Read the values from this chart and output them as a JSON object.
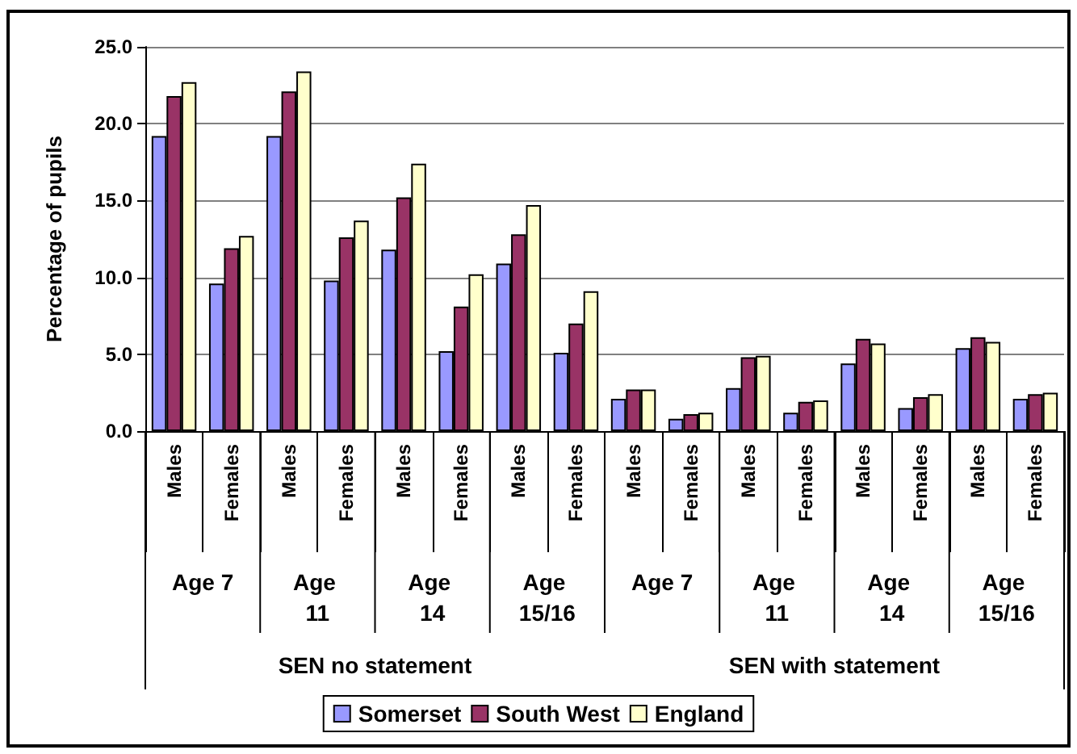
{
  "chart_data": {
    "type": "bar",
    "ylabel": "Percentage of pupils",
    "categories": [
      "Males",
      "Females",
      "Males",
      "Females",
      "Males",
      "Females",
      "Males",
      "Females",
      "Males",
      "Females",
      "Males",
      "Females",
      "Males",
      "Females",
      "Males",
      "Females"
    ],
    "series": [
      {
        "name": "Somerset",
        "color": "#9999ff",
        "values": [
          19.2,
          9.6,
          19.2,
          9.8,
          11.8,
          5.2,
          10.9,
          5.1,
          2.1,
          0.8,
          2.8,
          1.2,
          4.4,
          1.5,
          5.4,
          2.1
        ]
      },
      {
        "name": "South West",
        "color": "#993366",
        "values": [
          21.8,
          11.9,
          22.1,
          12.6,
          15.2,
          8.1,
          12.8,
          7.0,
          2.7,
          1.1,
          4.8,
          1.9,
          6.0,
          2.2,
          6.1,
          2.4
        ]
      },
      {
        "name": "England",
        "color": "#ffffcc",
        "values": [
          22.7,
          12.7,
          23.4,
          13.7,
          17.4,
          10.2,
          14.7,
          9.1,
          2.7,
          1.2,
          4.9,
          2.0,
          5.7,
          2.4,
          5.8,
          2.5
        ]
      }
    ],
    "annotations": [
      "Age 7",
      "Age 11",
      "Age 14",
      "Age 15/16",
      "Age 7",
      "Age 11",
      "Age 14",
      "Age 15/16",
      "SEN no statement",
      "SEN with statement"
    ],
    "ylim": [
      0,
      25
    ],
    "yticks": [
      {
        "value": 0,
        "label": "0.0"
      },
      {
        "value": 5,
        "label": "5.0"
      },
      {
        "value": 10,
        "label": "10.0"
      },
      {
        "value": 15,
        "label": "15.0"
      },
      {
        "value": 20,
        "label": "20.0"
      },
      {
        "value": 25,
        "label": "25.0"
      }
    ],
    "grid": "y",
    "legend": "bottom"
  }
}
